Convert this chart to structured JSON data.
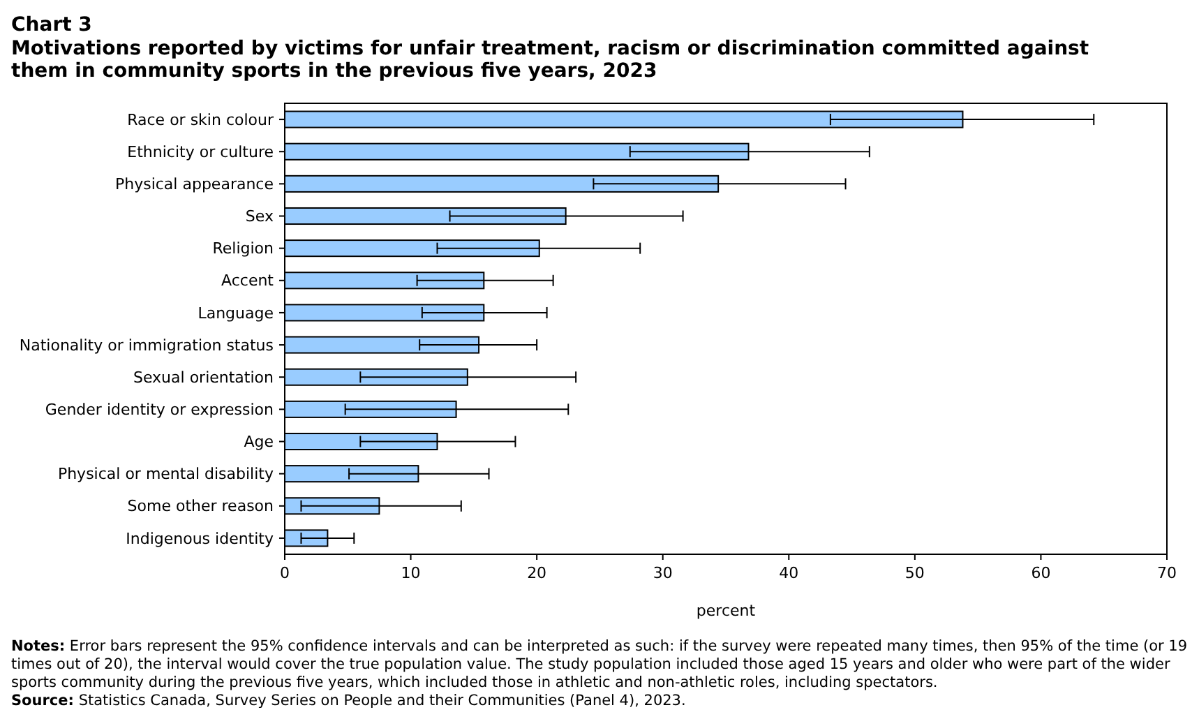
{
  "chart_data": {
    "type": "bar",
    "orientation": "horizontal",
    "title": "Chart 3",
    "subtitle": "Motivations reported by victims for unfair treatment, racism or discrimination  committed against them in community sports in the previous five years, 2023",
    "xlabel": "percent",
    "categories": [
      "Race or skin colour",
      "Ethnicity or culture",
      "Physical appearance",
      "Sex",
      "Religion",
      "Accent",
      "Language",
      "Nationality or immigration status",
      "Sexual orientation",
      "Gender identity or expression",
      "Age",
      "Physical or mental disability",
      "Some other reason",
      "Indigenous identity"
    ],
    "values": [
      53.8,
      36.8,
      34.4,
      22.3,
      20.2,
      15.8,
      15.8,
      15.4,
      14.5,
      13.6,
      12.1,
      10.6,
      7.5,
      3.4
    ],
    "errors": [
      [
        43.3,
        64.2
      ],
      [
        27.4,
        46.4
      ],
      [
        24.5,
        44.5
      ],
      [
        13.1,
        31.6
      ],
      [
        12.1,
        28.2
      ],
      [
        10.5,
        21.3
      ],
      [
        10.9,
        20.8
      ],
      [
        10.7,
        20.0
      ],
      [
        6.0,
        23.1
      ],
      [
        4.8,
        22.5
      ],
      [
        6.0,
        18.3
      ],
      [
        5.1,
        16.2
      ],
      [
        1.3,
        14.0
      ],
      [
        1.3,
        5.5
      ]
    ],
    "color": "#99ccff",
    "xlim": [
      0,
      70
    ],
    "xticks": [
      0,
      10,
      20,
      30,
      40,
      50,
      60,
      70
    ],
    "grid": false,
    "annotations": [
      "Notes: Error bars represent the 95% confidence intervals and can be interpreted as such: if the survey were repeated many times, then 95% of the time (or 19 times out of 20), the interval would cover the true population value. The study population included those aged 15 years and older who were part of the wider sports community during the previous five years, which included those in athletic and non-athletic roles, including spectators.",
      "Source: Statistics Canada, Survey Series on People and their Communities (Panel 4), 2023."
    ]
  }
}
